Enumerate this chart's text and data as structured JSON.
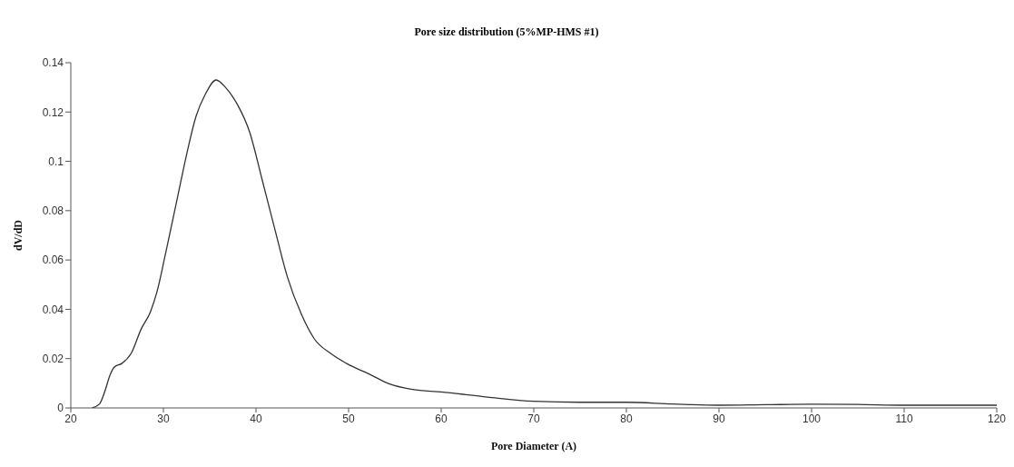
{
  "chart_data": {
    "type": "line",
    "title": "Pore size distribution (5%MP-HMS #1)",
    "xlabel": "Pore Diameter (A)",
    "ylabel": "dV/dD",
    "x": [
      22.3,
      23.1,
      23.7,
      24.2,
      24.7,
      25.5,
      26.5,
      27.6,
      28.6,
      29.3,
      30.2,
      31.5,
      32.7,
      33.5,
      34.5,
      35.7,
      36.7,
      38.0,
      39.3,
      40.7,
      42.0,
      43.4,
      44.9,
      46.3,
      48.1,
      49.8,
      52.4,
      54.3,
      56.9,
      60,
      65,
      70,
      75,
      80,
      85,
      90,
      95,
      100,
      105,
      110,
      120
    ],
    "series": [
      {
        "color": "#333333",
        "values": [
          0,
          0.0016,
          0.007,
          0.013,
          0.0166,
          0.018,
          0.022,
          0.032,
          0.039,
          0.047,
          0.062,
          0.085,
          0.106,
          0.118,
          0.127,
          0.133,
          0.13,
          0.123,
          0.112,
          0.092,
          0.073,
          0.053,
          0.038,
          0.028,
          0.022,
          0.018,
          0.0134,
          0.0099,
          0.0075,
          0.0065,
          0.0044,
          0.0027,
          0.0023,
          0.0023,
          0.0016,
          0.0011,
          0.0013,
          0.0015,
          0.0014,
          0.0011,
          0.0011
        ]
      }
    ],
    "xlim": [
      20,
      120
    ],
    "xticks": [
      20,
      30,
      40,
      50,
      60,
      70,
      80,
      90,
      100,
      110,
      120
    ],
    "ylim": [
      0,
      0.14
    ],
    "yticks": [
      0,
      0.02,
      0.04,
      0.06,
      0.08,
      0.1,
      0.12,
      0.14
    ],
    "grid": false,
    "legend": false,
    "marker": "none",
    "line_style": "solid"
  }
}
